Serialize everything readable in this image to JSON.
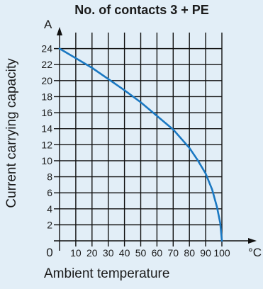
{
  "chart_data": {
    "type": "line",
    "title": "No. of contacts 3 + PE",
    "xlabel": "Ambient temperature",
    "ylabel": "Current carrying capacity",
    "x_unit": "°C",
    "y_unit": "A",
    "xlim": [
      0,
      100
    ],
    "ylim": [
      0,
      26
    ],
    "x_ticks": [
      0,
      10,
      20,
      30,
      40,
      50,
      60,
      70,
      80,
      90,
      100
    ],
    "y_ticks": [
      2,
      4,
      6,
      8,
      10,
      12,
      14,
      16,
      18,
      20,
      22,
      24
    ],
    "grid": true,
    "series": [
      {
        "color": "#1a78c2",
        "x": [
          0,
          10,
          20,
          30,
          40,
          50,
          60,
          70,
          80,
          85,
          90,
          94,
          97,
          99,
          100
        ],
        "y": [
          24,
          22.8,
          21.6,
          20.2,
          18.8,
          17.3,
          15.6,
          13.9,
          11.6,
          10.1,
          8.4,
          6.4,
          4.2,
          2.2,
          0
        ]
      }
    ]
  }
}
